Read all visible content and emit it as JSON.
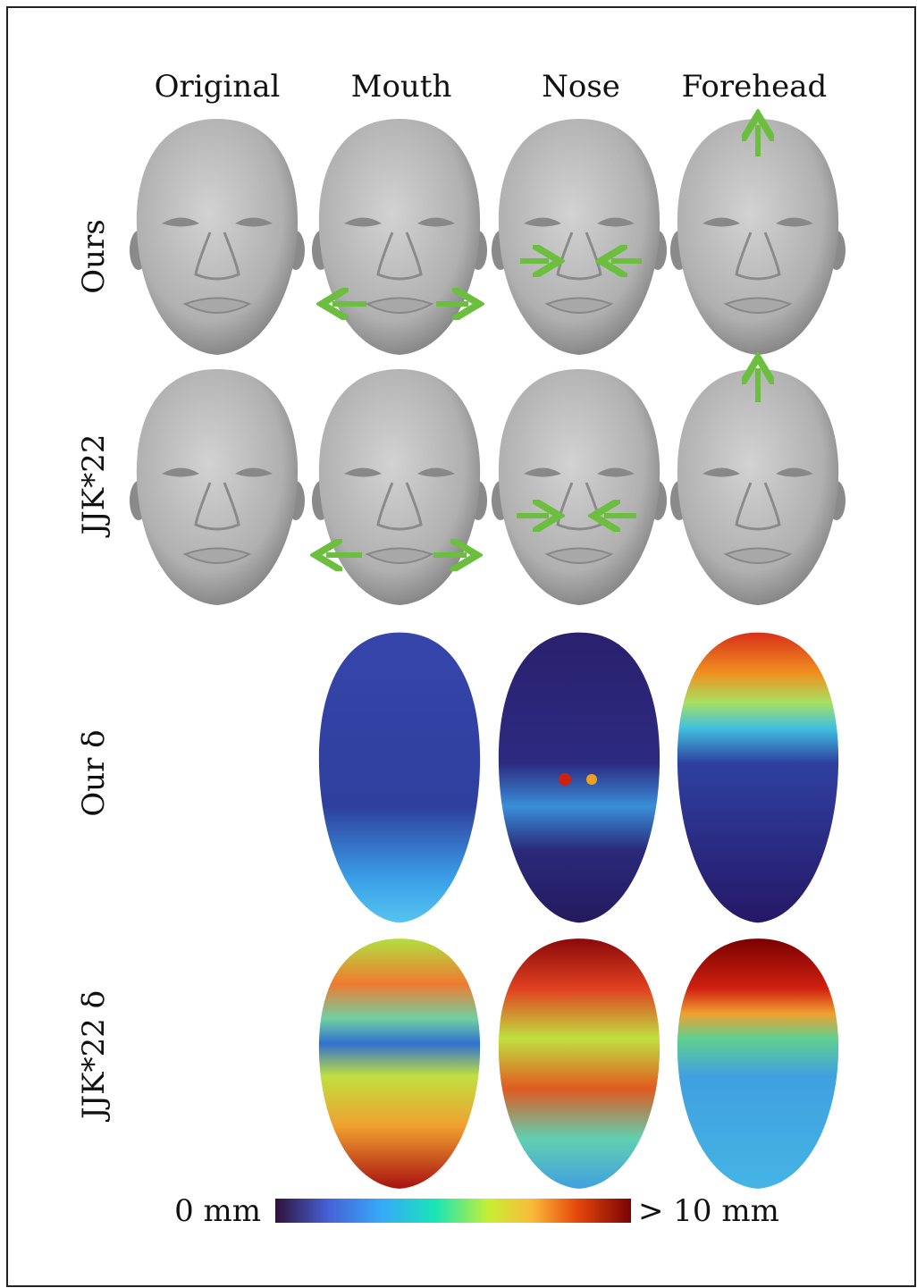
{
  "header": {
    "columns": [
      "Original",
      "Mouth",
      "Nose",
      "Forehead"
    ]
  },
  "rows": [
    "Ours",
    "JJK*22",
    "Our δ",
    "JJK*22 δ"
  ],
  "colorbar": {
    "min_label": "0 mm",
    "max_label": "> 10 mm"
  }
}
